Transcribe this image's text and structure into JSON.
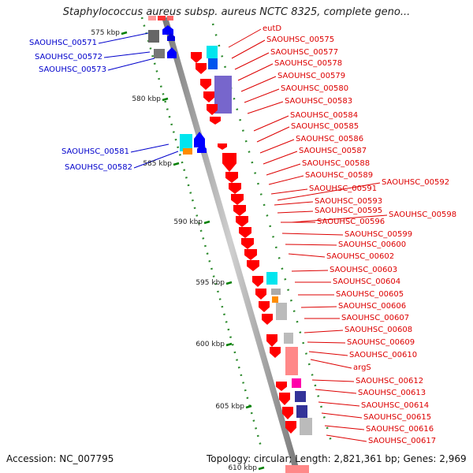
{
  "title": "Staphylococcus aureus subsp. aureus NCTC 8325, complete geno...",
  "left_labels": [
    "SAOUHSC_00571",
    "SAOUHSC_00572",
    "SAOUHSC_00573",
    "SAOUHSC_00581",
    "SAOUHSC_00582"
  ],
  "right_labels": [
    "eutD",
    "SAOUHSC_00575",
    "SAOUHSC_00577",
    "SAOUHSC_00578",
    "SAOUHSC_00579",
    "SAOUHSC_00580",
    "SAOUHSC_00583",
    "SAOUHSC_00584",
    "SAOUHSC_00585",
    "SAOUHSC_00586",
    "SAOUHSC_00587",
    "SAOUHSC_00588",
    "SAOUHSC_00589",
    "SAOUHSC_00591",
    "SAOUHSC_00592",
    "SAOUHSC_00593",
    "SAOUHSC_00595",
    "SAOUHSC_00596",
    "SAOUHSC_00598",
    "SAOUHSC_00599",
    "SAOUHSC_00600",
    "SAOUHSC_00602",
    "SAOUHSC_00603",
    "SAOUHSC_00604",
    "SAOUHSC_00605",
    "SAOUHSC_00606",
    "SAOUHSC_00607",
    "SAOUHSC_00608",
    "SAOUHSC_00609",
    "SAOUHSC_00610",
    "argS",
    "SAOUHSC_00612",
    "SAOUHSC_00613",
    "SAOUHSC_00614",
    "SAOUHSC_00615",
    "SAOUHSC_00616",
    "SAOUHSC_00617"
  ],
  "scale_labels": [
    "575 kbp",
    "580 kbp",
    "585 kbp",
    "590 kbp",
    "595 kbp",
    "600 kbp",
    "605 kbp",
    "610 kbp"
  ],
  "footer": {
    "accession": "Accession: NC_007795",
    "summary": "Topology: circular; Length: 2,821,361 bp; Genes: 2,969"
  },
  "colors": {
    "gene_red": "#ff0000",
    "label_blue": "#0000cc",
    "label_red": "#dd0000",
    "tick_green": "#008000",
    "backbone": "#999999"
  }
}
